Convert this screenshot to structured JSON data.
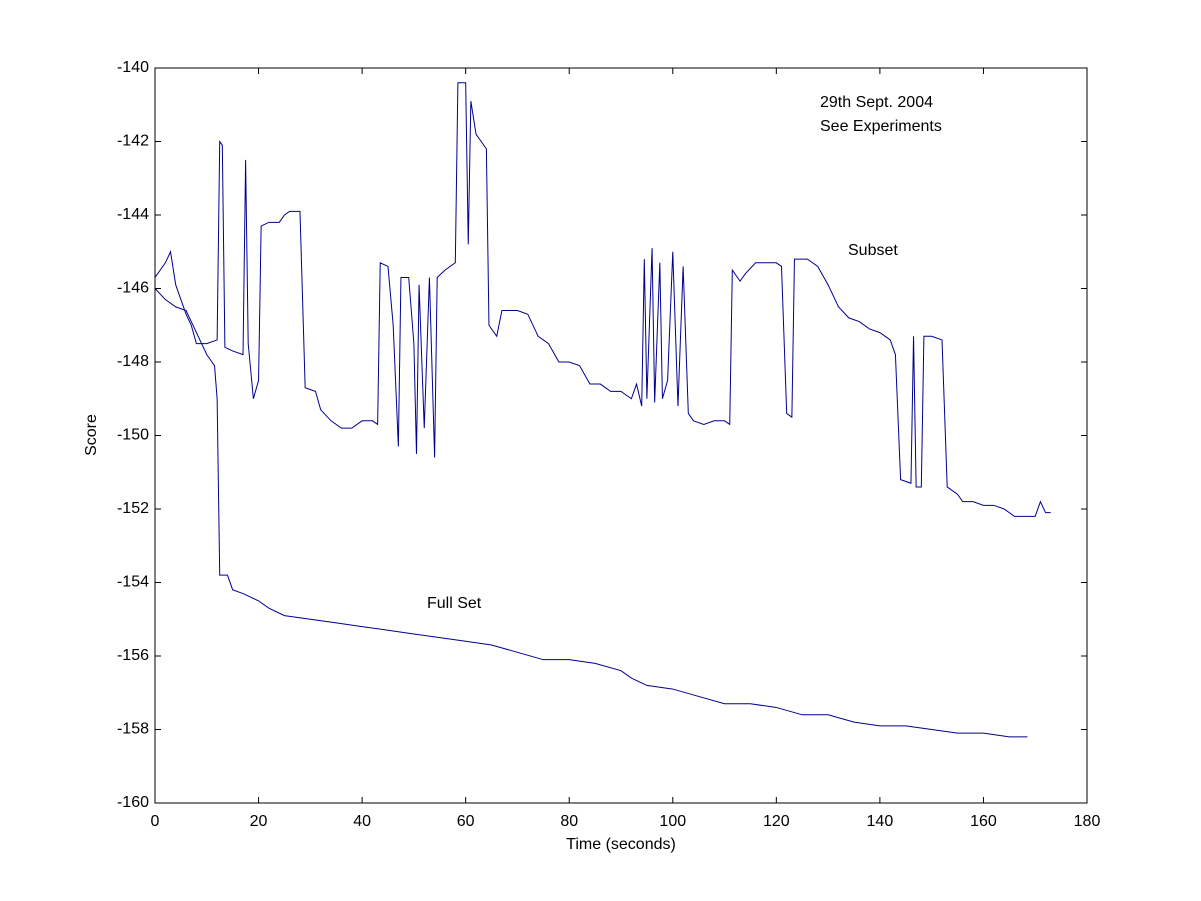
{
  "chart_data": {
    "type": "line",
    "xlabel": "Time (seconds)",
    "ylabel": "Score",
    "annotations": [
      "29th Sept. 2004",
      "See Experiments"
    ],
    "xlim": [
      0,
      180
    ],
    "xticks": [
      0,
      20,
      40,
      60,
      80,
      100,
      120,
      140,
      160,
      180
    ],
    "ylim": [
      -160,
      -140
    ],
    "yticks": [
      -160,
      -158,
      -156,
      -154,
      -152,
      -150,
      -148,
      -146,
      -144,
      -142,
      -140
    ],
    "grid": false,
    "series": [
      {
        "name": "Subset",
        "color": "#00008f",
        "x": [
          0,
          1,
          2,
          3,
          4,
          5,
          6,
          7,
          8,
          10,
          12,
          12.5,
          13,
          13.5,
          15,
          17,
          17.5,
          18,
          19,
          20,
          20.5,
          22,
          24,
          25,
          26,
          28,
          29,
          31,
          32,
          34,
          36,
          38,
          40,
          42,
          43,
          43.5,
          45,
          46,
          47,
          47.5,
          49,
          50,
          50.5,
          51,
          52,
          53,
          54,
          54.5,
          56,
          58,
          58.5,
          60,
          60.5,
          61,
          62,
          63,
          64,
          64.5,
          66,
          67,
          70,
          72,
          74,
          76,
          78,
          80,
          82,
          84,
          86,
          88,
          90,
          92,
          93,
          94,
          94.5,
          95,
          96,
          96.5,
          97.5,
          98,
          99,
          100,
          101,
          102,
          103,
          104,
          106,
          108,
          110,
          111,
          111.5,
          113,
          114,
          116,
          118,
          120,
          121,
          122,
          123,
          123.5,
          126,
          128,
          130,
          132,
          134,
          136,
          138,
          140,
          142,
          143,
          144,
          146,
          146.5,
          147,
          148,
          148.5,
          150,
          152,
          153,
          155,
          156,
          158,
          160,
          162,
          164,
          166,
          168,
          170,
          171,
          172,
          173
        ],
        "values": [
          -145.7,
          -145.5,
          -145.3,
          -145.0,
          -145.9,
          -146.3,
          -146.7,
          -147.0,
          -147.5,
          -147.5,
          -147.4,
          -142.0,
          -142.1,
          -147.6,
          -147.7,
          -147.8,
          -142.5,
          -147.5,
          -149.0,
          -148.5,
          -144.3,
          -144.2,
          -144.2,
          -144.0,
          -143.9,
          -143.9,
          -148.7,
          -148.8,
          -149.3,
          -149.6,
          -149.8,
          -149.8,
          -149.6,
          -149.6,
          -149.7,
          -145.3,
          -145.4,
          -147.0,
          -150.3,
          -145.7,
          -145.7,
          -147.5,
          -150.5,
          -145.9,
          -149.8,
          -145.7,
          -150.6,
          -145.7,
          -145.5,
          -145.3,
          -140.4,
          -140.4,
          -144.8,
          -140.9,
          -141.8,
          -142.0,
          -142.2,
          -147.0,
          -147.3,
          -146.6,
          -146.6,
          -146.7,
          -147.3,
          -147.5,
          -148.0,
          -148.0,
          -148.1,
          -148.6,
          -148.6,
          -148.8,
          -148.8,
          -149.0,
          -148.6,
          -149.2,
          -145.2,
          -149.0,
          -144.9,
          -149.1,
          -145.3,
          -149.0,
          -148.5,
          -145.0,
          -149.2,
          -145.4,
          -149.4,
          -149.6,
          -149.7,
          -149.6,
          -149.6,
          -149.7,
          -145.5,
          -145.8,
          -145.6,
          -145.3,
          -145.3,
          -145.3,
          -145.4,
          -149.4,
          -149.5,
          -145.2,
          -145.2,
          -145.4,
          -145.9,
          -146.5,
          -146.8,
          -146.9,
          -147.1,
          -147.2,
          -147.4,
          -147.8,
          -151.2,
          -151.3,
          -147.3,
          -151.4,
          -151.4,
          -147.3,
          -147.3,
          -147.4,
          -151.4,
          -151.6,
          -151.8,
          -151.8,
          -151.9,
          -151.9,
          -152.0,
          -152.2,
          -152.2,
          -152.2,
          -151.8,
          -152.1,
          -152.1
        ]
      },
      {
        "name": "Full Set",
        "color": "#00008f",
        "x": [
          0,
          2,
          4,
          6,
          8,
          10,
          11,
          11.5,
          12,
          12.5,
          14,
          15,
          17,
          20,
          22,
          25,
          30,
          35,
          40,
          45,
          50,
          55,
          60,
          65,
          70,
          75,
          80,
          85,
          90,
          92,
          95,
          100,
          105,
          110,
          115,
          120,
          125,
          130,
          135,
          140,
          145,
          150,
          155,
          160,
          165,
          168.5
        ],
        "values": [
          -146.0,
          -146.3,
          -146.5,
          -146.6,
          -147.2,
          -147.8,
          -148.0,
          -148.1,
          -149.0,
          -153.8,
          -153.8,
          -154.2,
          -154.3,
          -154.5,
          -154.7,
          -154.9,
          -155.0,
          -155.1,
          -155.2,
          -155.3,
          -155.4,
          -155.5,
          -155.6,
          -155.7,
          -155.9,
          -156.1,
          -156.1,
          -156.2,
          -156.4,
          -156.6,
          -156.8,
          -156.9,
          -157.1,
          -157.3,
          -157.3,
          -157.4,
          -157.6,
          -157.6,
          -157.8,
          -157.9,
          -157.9,
          -158.0,
          -158.1,
          -158.1,
          -158.2,
          -158.2
        ]
      }
    ]
  }
}
